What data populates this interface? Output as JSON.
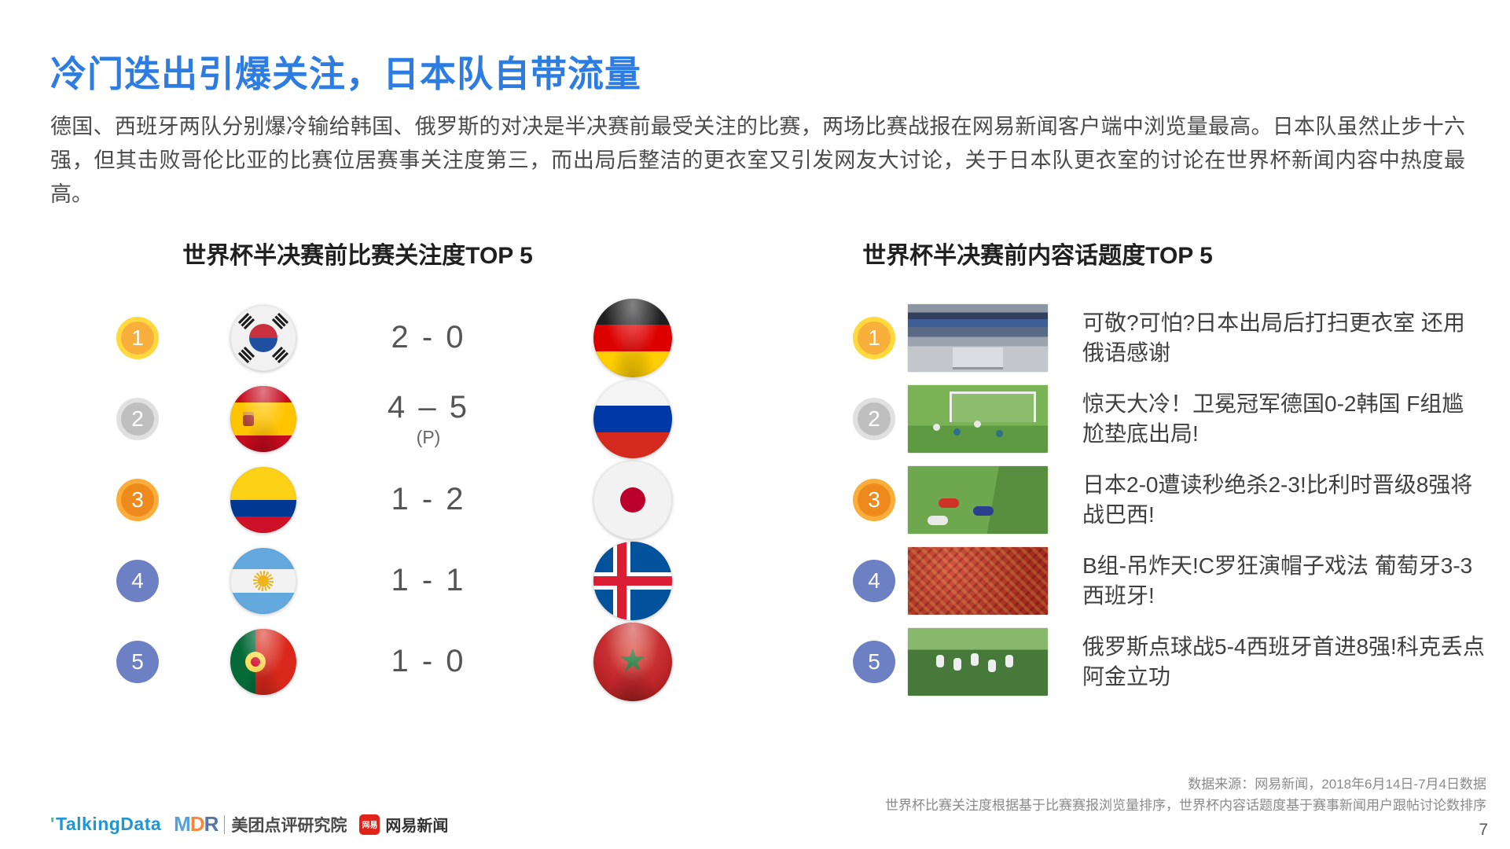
{
  "title": "冷门迭出引爆关注，日本队自带流量",
  "intro": "德国、西班牙两队分别爆冷输给韩国、俄罗斯的对决是半决赛前最受关注的比赛，两场比赛战报在网易新闻客户端中浏览量最高。日本队虽然止步十六强，但其击败哥伦比亚的比赛位居赛事关注度第三，而出局后整洁的更衣室又引发网友大讨论，关于日本队更衣室的讨论在世界杯新闻内容中热度最高。",
  "left_panel": {
    "title": "世界杯半决赛前比赛关注度TOP 5",
    "rows": [
      {
        "rank": "1",
        "home_team": "South Korea",
        "score": "2 - 0",
        "away_team": "Germany"
      },
      {
        "rank": "2",
        "home_team": "Spain",
        "score": "4 – 5",
        "note": "(P)",
        "away_team": "Russia"
      },
      {
        "rank": "3",
        "home_team": "Colombia",
        "score": "1 - 2",
        "away_team": "Japan"
      },
      {
        "rank": "4",
        "home_team": "Argentina",
        "score": "1 - 1",
        "away_team": "Iceland"
      },
      {
        "rank": "5",
        "home_team": "Portugal",
        "score": "1 - 0",
        "away_team": "Morocco"
      }
    ]
  },
  "right_panel": {
    "title": "世界杯半决赛前内容话题度TOP 5",
    "rows": [
      {
        "rank": "1",
        "photo": "japan-locker-room",
        "headline": "可敬?可怕?日本出局后打扫更衣室 还用俄语感谢"
      },
      {
        "rank": "2",
        "photo": "germany-korea-match",
        "headline": "惊天大冷！卫冕冠军德国0-2韩国 F组尴尬垫底出局!"
      },
      {
        "rank": "3",
        "photo": "japan-belgium-match",
        "headline": "日本2-0遭读秒绝杀2-3!比利时晋级8强将战巴西!"
      },
      {
        "rank": "4",
        "photo": "portugal-spain-fans",
        "headline": "B组-吊炸天!C罗狂演帽子戏法 葡萄牙3-3西班牙!"
      },
      {
        "rank": "5",
        "photo": "russia-spain-match",
        "headline": "俄罗斯点球战5-4西班牙首进8强!科克丢点阿金立功"
      }
    ]
  },
  "footer": {
    "source_line1": "数据来源：网易新闻，2018年6月14日-7月4日数据",
    "source_line2": "世界杯比赛关注度根据基于比赛赛报浏览量排序，世界杯内容话题度基于赛事新闻用户跟帖讨论数排序",
    "page_number": "7",
    "logos": {
      "talkingdata": "TalkingData",
      "mdr_m": "M",
      "mdr_d": "D",
      "mdr_r": "R",
      "mdr_name": "美团点评研究院",
      "netease_badge": "网易",
      "netease_name": "网易新闻"
    }
  },
  "colors": {
    "title_blue": "#2C7CE2",
    "medal_gold": "#F9AF3C",
    "medal_silver": "#BFBFBF",
    "medal_bronze": "#EE8A1C",
    "medal_plain_blue": "#6E80C4",
    "ribbon_orange": "#FF4E1F"
  }
}
